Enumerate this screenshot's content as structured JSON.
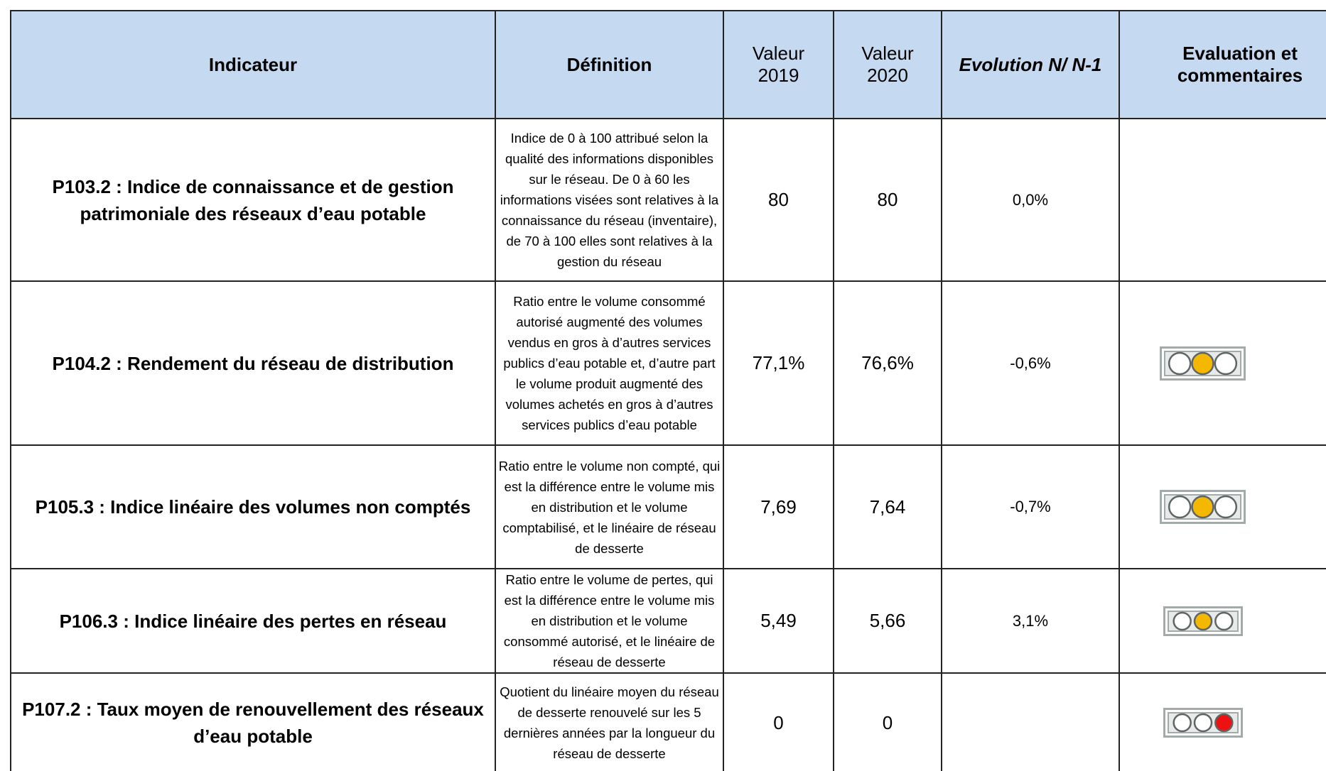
{
  "table": {
    "header": [
      "Indicateur",
      "Définition",
      "Valeur 2019",
      "Valeur 2020",
      "Evolution N/ N-1",
      "Evaluation et commentaires"
    ],
    "rows": [
      {
        "indicator": "P103.2 : Indice de connaissance et de gestion patrimoniale des réseaux d’eau potable",
        "definition": "Indice de 0 à 100 attribué selon la qualité des informations disponibles sur le réseau. De 0 à 60 les informations visées sont relatives à la connaissance du réseau (inventaire), de 70 à 100 elles sont relatives à la gestion du réseau",
        "v2019": "80",
        "v2020": "80",
        "evolution": "0,0%"
      },
      {
        "indicator": "P104.2 : Rendement du réseau de distribution",
        "definition": "Ratio entre le volume consommé autorisé augmenté des volumes vendus en gros à d’autres services publics d’eau potable et, d’autre part le volume produit augmenté des volumes achetés en gros à d’autres services publics d’eau potable",
        "v2019": "77,1%",
        "v2020": "76,6%",
        "evolution": "-0,6%"
      },
      {
        "indicator": "P105.3 : Indice linéaire des volumes non comptés",
        "definition": "Ratio entre le volume non compté, qui est la différence entre le volume mis en distribution et le volume comptabilisé, et le linéaire de réseau de desserte",
        "v2019": "7,69",
        "v2020": "7,64",
        "evolution": "-0,7%"
      },
      {
        "indicator": "P106.3 : Indice linéaire des pertes en réseau",
        "definition": "Ratio entre le volume de pertes, qui est la différence entre le volume mis en distribution et le volume consommé autorisé, et le linéaire de réseau de desserte",
        "v2019": "5,49",
        "v2020": "5,66",
        "evolution": "3,1%"
      },
      {
        "indicator": "P107.2 : Taux moyen de renouvellement des réseaux d’eau potable",
        "definition": "Quotient du linéaire moyen du réseau de desserte renouvelé sur les 5 dernières années par la longueur du réseau de desserte",
        "v2019": "0",
        "v2020": "0"
      }
    ]
  }
}
